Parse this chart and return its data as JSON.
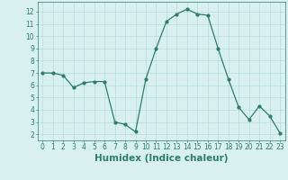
{
  "x": [
    0,
    1,
    2,
    3,
    4,
    5,
    6,
    7,
    8,
    9,
    10,
    11,
    12,
    13,
    14,
    15,
    16,
    17,
    18,
    19,
    20,
    21,
    22,
    23
  ],
  "y": [
    7.0,
    7.0,
    6.8,
    5.8,
    6.2,
    6.3,
    6.3,
    3.0,
    2.8,
    2.2,
    6.5,
    9.0,
    11.2,
    11.8,
    12.2,
    11.8,
    11.7,
    9.0,
    6.5,
    4.2,
    3.2,
    4.3,
    3.5,
    2.1
  ],
  "xlim": [
    -0.5,
    23.5
  ],
  "ylim": [
    1.5,
    12.8
  ],
  "yticks": [
    2,
    3,
    4,
    5,
    6,
    7,
    8,
    9,
    10,
    11,
    12
  ],
  "xticks": [
    0,
    1,
    2,
    3,
    4,
    5,
    6,
    7,
    8,
    9,
    10,
    11,
    12,
    13,
    14,
    15,
    16,
    17,
    18,
    19,
    20,
    21,
    22,
    23
  ],
  "xlabel": "Humidex (Indice chaleur)",
  "line_color": "#2d7d6e",
  "marker": "o",
  "marker_size": 2,
  "bg_color": "#d8f0ee",
  "grid_color": "#b8dcd8",
  "tick_fontsize": 5.5,
  "label_fontsize": 7.5
}
